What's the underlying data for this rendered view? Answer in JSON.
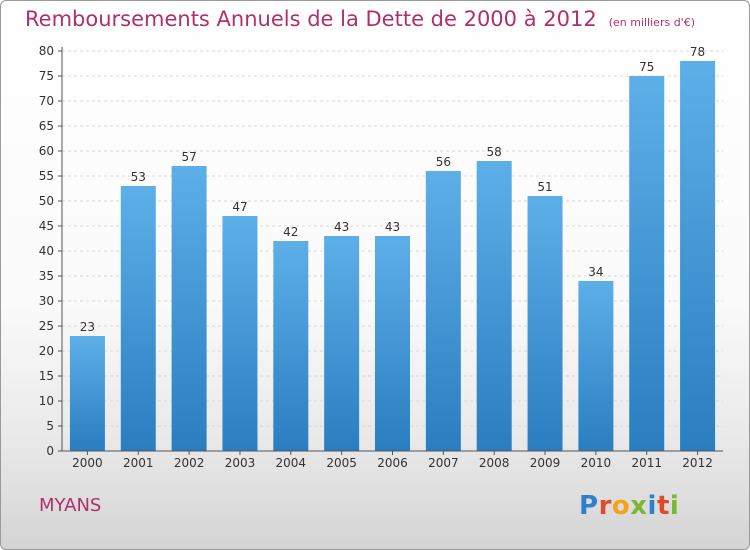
{
  "header": {
    "title": "Remboursements Annuels de la Dette de 2000 à 2012",
    "subtitle": "(en milliers d'€)"
  },
  "footer": {
    "commune": "MYANS",
    "logo_text": "Proxiti"
  },
  "colors": {
    "title": "#b0306a",
    "bar_top": "#5dafe8",
    "bar_bottom": "#2a7ec0",
    "axis": "#555555",
    "grid": "#d8d8d8"
  },
  "chart_data": {
    "type": "bar",
    "categories": [
      "2000",
      "2001",
      "2002",
      "2003",
      "2004",
      "2005",
      "2006",
      "2007",
      "2008",
      "2009",
      "2010",
      "2011",
      "2012"
    ],
    "values": [
      23,
      53,
      57,
      47,
      42,
      43,
      43,
      56,
      58,
      51,
      34,
      75,
      78
    ],
    "title": "Remboursements Annuels de la Dette de 2000 à 2012",
    "subtitle": "(en milliers d'€)",
    "ylim": [
      0,
      80
    ],
    "yticks": [
      0,
      5,
      10,
      15,
      20,
      25,
      30,
      35,
      40,
      45,
      50,
      55,
      60,
      65,
      70,
      75,
      80
    ],
    "grid": "horizontal dashed",
    "legend": "none"
  }
}
